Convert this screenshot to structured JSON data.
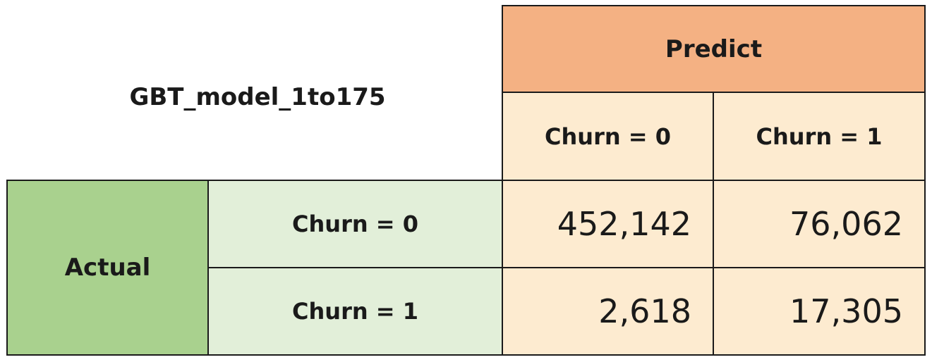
{
  "title": "GBT_model_1to175",
  "predict_header": "Predict",
  "actual_header": "Actual",
  "predicted_labels": [
    "Churn = 0",
    "Churn = 1"
  ],
  "actual_labels": [
    "Churn = 0",
    "Churn = 1"
  ],
  "matrix": [
    [
      "452,142",
      "76,062"
    ],
    [
      "2,618",
      "17,305"
    ]
  ],
  "colors": {
    "predict_header": "#f4b183",
    "predict_cells": "#fdebd0",
    "actual_header": "#a9d18e",
    "actual_labels": "#e2efd9"
  }
}
